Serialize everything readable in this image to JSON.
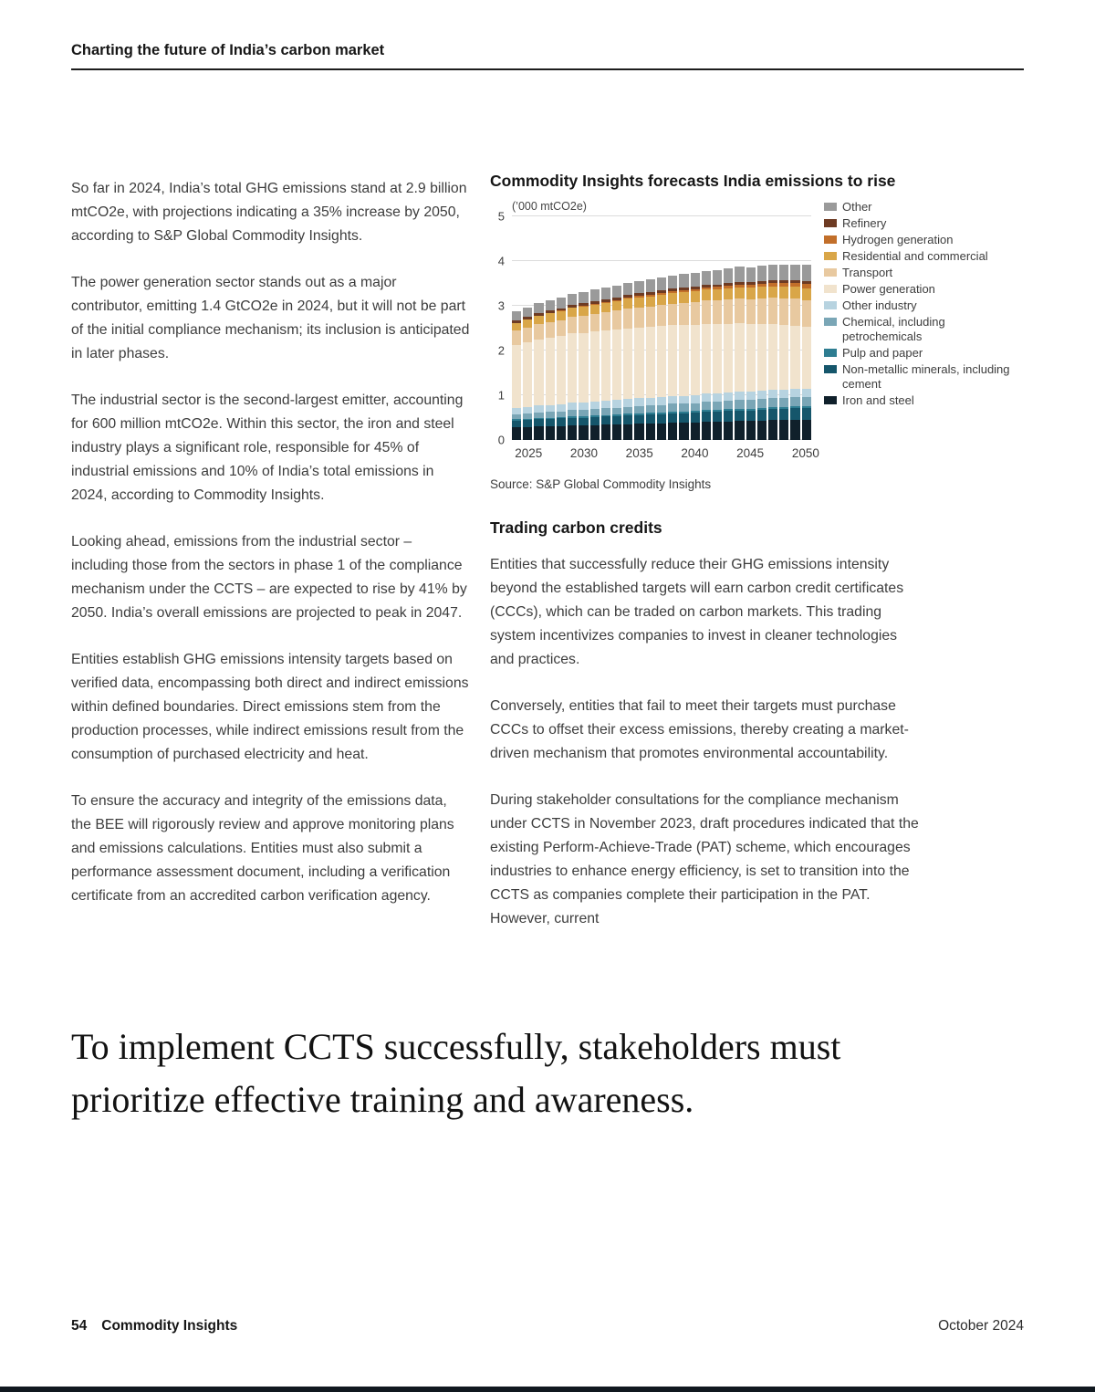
{
  "header": {
    "title": "Charting the future of India’s carbon market"
  },
  "left_column": {
    "paragraphs": [
      "So far in 2024, India’s total GHG emissions stand at 2.9 billion mtCO2e, with projections indicating a 35% increase by 2050, according to S&P Global Commodity Insights.",
      "The power generation sector stands out as a major contributor, emitting 1.4 GtCO2e in 2024, but it will not be part of the initial compliance mechanism; its inclusion is anticipated in later phases.",
      "The industrial sector is the second-largest emitter, accounting for 600 million mtCO2e. Within this sector, the iron and steel industry plays a significant role, responsible for 45% of industrial emissions and 10% of India’s total emissions in 2024, according to Commodity Insights.",
      "Looking ahead, emissions from the industrial sector – including those from the sectors in phase 1 of the compliance mechanism under the CCTS – are expected to rise by 41% by 2050. India’s overall emissions are projected to peak in 2047.",
      "Entities establish GHG emissions intensity targets based on verified data, encompassing both direct and indirect emissions within defined boundaries. Direct emissions stem from the production processes, while indirect emissions result from the consumption of purchased electricity and heat.",
      "To ensure the accuracy and integrity of the emissions data, the BEE will rigorously review and approve monitoring plans and emissions calculations. Entities must also submit a performance assessment document, including a verification certificate from an accredited carbon verification agency."
    ]
  },
  "right_column": {
    "section_heading": "Trading carbon credits",
    "paragraphs": [
      "Entities that successfully reduce their GHG emissions intensity beyond the established targets will earn carbon credit certificates (CCCs), which can be traded on carbon markets. This trading system incentivizes companies to invest in cleaner technologies and practices.",
      "Conversely, entities that fail to meet their targets must purchase CCCs to offset their excess emissions, thereby creating a market-driven mechanism that promotes environmental accountability.",
      "During stakeholder consultations for the compliance mechanism under CCTS in November 2023, draft procedures indicated that the existing Perform-Achieve-Trade (PAT) scheme, which encourages industries to enhance energy efficiency, is set to transition into the CCTS as companies complete their participation in the PAT. However, current"
    ]
  },
  "pull_quote": "To implement CCTS successfully, stakeholders must prioritize effective training and awareness.",
  "footer": {
    "page_number": "54",
    "brand": "Commodity Insights",
    "date": "October 2024"
  },
  "chart_data": {
    "type": "bar",
    "stacked": true,
    "title": "Commodity Insights forecasts India emissions to rise",
    "unit_label": "(’000 mtCO2e)",
    "source": "Source: S&P Global Commodity Insights",
    "ylim": [
      0,
      5
    ],
    "yticks": [
      0,
      1,
      2,
      3,
      4,
      5
    ],
    "xticks": [
      2025,
      2030,
      2035,
      2040,
      2045,
      2050
    ],
    "grid": true,
    "legend_position": "right",
    "years": [
      2024,
      2025,
      2026,
      2027,
      2028,
      2029,
      2030,
      2031,
      2032,
      2033,
      2034,
      2035,
      2036,
      2037,
      2038,
      2039,
      2040,
      2041,
      2042,
      2043,
      2044,
      2045,
      2046,
      2047,
      2048,
      2049,
      2050
    ],
    "series": [
      {
        "name": "Iron and steel",
        "color": "#10202b",
        "values": [
          0.28,
          0.29,
          0.3,
          0.3,
          0.31,
          0.32,
          0.32,
          0.33,
          0.34,
          0.34,
          0.35,
          0.36,
          0.36,
          0.37,
          0.38,
          0.38,
          0.39,
          0.4,
          0.4,
          0.41,
          0.42,
          0.42,
          0.43,
          0.44,
          0.44,
          0.45,
          0.45
        ]
      },
      {
        "name": "Non-metallic minerals, including cement",
        "color": "#15566b",
        "values": [
          0.15,
          0.16,
          0.16,
          0.17,
          0.17,
          0.18,
          0.18,
          0.19,
          0.19,
          0.2,
          0.2,
          0.2,
          0.21,
          0.21,
          0.22,
          0.22,
          0.22,
          0.23,
          0.23,
          0.24,
          0.24,
          0.24,
          0.25,
          0.25,
          0.25,
          0.26,
          0.26
        ]
      },
      {
        "name": "Pulp and paper",
        "color": "#2e7d91",
        "values": [
          0.03,
          0.03,
          0.03,
          0.03,
          0.03,
          0.03,
          0.03,
          0.03,
          0.03,
          0.03,
          0.04,
          0.04,
          0.04,
          0.04,
          0.04,
          0.04,
          0.04,
          0.04,
          0.04,
          0.04,
          0.04,
          0.04,
          0.04,
          0.04,
          0.04,
          0.04,
          0.04
        ]
      },
      {
        "name": "Chemical, including petrochemicals",
        "color": "#7aa6b6",
        "values": [
          0.12,
          0.12,
          0.13,
          0.13,
          0.13,
          0.14,
          0.14,
          0.14,
          0.15,
          0.15,
          0.15,
          0.16,
          0.16,
          0.16,
          0.17,
          0.17,
          0.17,
          0.18,
          0.18,
          0.18,
          0.19,
          0.19,
          0.19,
          0.2,
          0.2,
          0.2,
          0.2
        ]
      },
      {
        "name": "Other industry",
        "color": "#b7d3e0",
        "values": [
          0.14,
          0.14,
          0.15,
          0.15,
          0.15,
          0.16,
          0.16,
          0.16,
          0.16,
          0.17,
          0.17,
          0.17,
          0.17,
          0.18,
          0.18,
          0.18,
          0.18,
          0.19,
          0.19,
          0.19,
          0.19,
          0.19,
          0.2,
          0.2,
          0.2,
          0.2,
          0.2
        ]
      },
      {
        "name": "Power generation",
        "color": "#f1e3cd",
        "values": [
          1.4,
          1.44,
          1.48,
          1.51,
          1.53,
          1.55,
          1.56,
          1.57,
          1.58,
          1.58,
          1.59,
          1.59,
          1.59,
          1.59,
          1.58,
          1.58,
          1.57,
          1.56,
          1.55,
          1.54,
          1.53,
          1.51,
          1.49,
          1.47,
          1.44,
          1.41,
          1.38
        ]
      },
      {
        "name": "Transport",
        "color": "#e8c9a0",
        "values": [
          0.32,
          0.33,
          0.34,
          0.35,
          0.36,
          0.38,
          0.39,
          0.4,
          0.41,
          0.42,
          0.44,
          0.45,
          0.46,
          0.47,
          0.48,
          0.5,
          0.51,
          0.52,
          0.53,
          0.54,
          0.55,
          0.56,
          0.57,
          0.58,
          0.59,
          0.6,
          0.6
        ]
      },
      {
        "name": "Residential and commercial",
        "color": "#d9a648",
        "values": [
          0.18,
          0.18,
          0.19,
          0.19,
          0.2,
          0.2,
          0.2,
          0.21,
          0.21,
          0.21,
          0.22,
          0.22,
          0.22,
          0.23,
          0.23,
          0.23,
          0.24,
          0.24,
          0.24,
          0.25,
          0.25,
          0.25,
          0.25,
          0.26,
          0.26,
          0.26,
          0.26
        ]
      },
      {
        "name": "Hydrogen generation",
        "color": "#c26f2a",
        "values": [
          0.0,
          0.0,
          0.0,
          0.01,
          0.01,
          0.01,
          0.02,
          0.02,
          0.02,
          0.03,
          0.03,
          0.03,
          0.04,
          0.04,
          0.04,
          0.05,
          0.05,
          0.05,
          0.06,
          0.06,
          0.07,
          0.07,
          0.08,
          0.08,
          0.09,
          0.09,
          0.1
        ]
      },
      {
        "name": "Refinery",
        "color": "#6e3b23",
        "values": [
          0.06,
          0.06,
          0.06,
          0.06,
          0.06,
          0.06,
          0.06,
          0.06,
          0.06,
          0.06,
          0.06,
          0.06,
          0.06,
          0.06,
          0.06,
          0.06,
          0.06,
          0.06,
          0.06,
          0.06,
          0.06,
          0.06,
          0.06,
          0.06,
          0.06,
          0.06,
          0.06
        ]
      },
      {
        "name": "Other",
        "color": "#9a9a9a",
        "values": [
          0.2,
          0.21,
          0.22,
          0.22,
          0.23,
          0.24,
          0.24,
          0.25,
          0.26,
          0.26,
          0.27,
          0.27,
          0.28,
          0.29,
          0.29,
          0.3,
          0.3,
          0.31,
          0.31,
          0.32,
          0.33,
          0.33,
          0.34,
          0.34,
          0.35,
          0.35,
          0.36
        ]
      }
    ]
  }
}
